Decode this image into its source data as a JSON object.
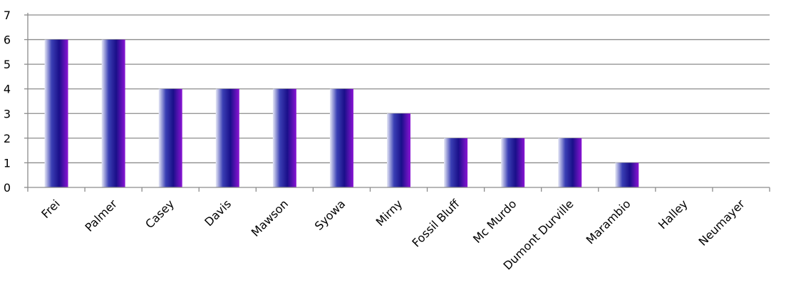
{
  "chart_data": {
    "type": "bar",
    "title": "",
    "xlabel": "",
    "ylabel": "",
    "categories": [
      "Frei",
      "Palmer",
      "Casey",
      "Davis",
      "Mawson",
      "Syowa",
      "Mirny",
      "Fossil Bluff",
      "Mc Murdo",
      "Dumont Durville",
      "Marambio",
      "Halley",
      "Neumayer"
    ],
    "values": [
      6,
      6,
      4,
      4,
      4,
      4,
      3,
      2,
      2,
      2,
      1,
      0,
      0
    ],
    "ylim": [
      0,
      7
    ],
    "yticks": [
      0,
      1,
      2,
      3,
      4,
      5,
      6,
      7
    ],
    "grid": true,
    "legend": "none",
    "colors": {
      "bar_light": "#e6e8f6",
      "bar_mid": "#3a3fb4",
      "bar_dark": "#1a0f8a",
      "bar_edge": "#8a14d4",
      "grid": "#8c8c8c",
      "axis": "#8c8c8c"
    }
  }
}
